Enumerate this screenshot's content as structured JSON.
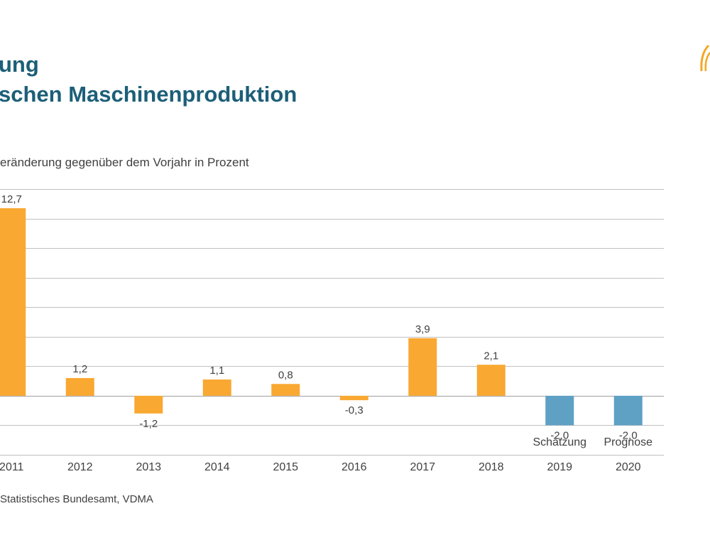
{
  "header": {
    "title_line1": "ung",
    "title_line2": "schen Maschinenproduktion"
  },
  "icons": {
    "logo": "sun-arc-logo-icon"
  },
  "colors": {
    "bar_actual": "#f9a832",
    "bar_forecast": "#5fa0c5",
    "title": "#1c5f78",
    "gridline": "#c0c0c0",
    "text": "#404040"
  },
  "chart_data": {
    "type": "bar",
    "subtitle": "eränderung gegenüber dem Vorjahr in Prozent",
    "categories": [
      "2011",
      "2012",
      "2013",
      "2014",
      "2015",
      "2016",
      "2017",
      "2018",
      "2019",
      "2020"
    ],
    "values": [
      12.7,
      1.2,
      -1.2,
      1.1,
      0.8,
      -0.3,
      3.9,
      2.1,
      -2.0,
      -2.0
    ],
    "value_labels": [
      "12,7",
      "1,2",
      "-1,2",
      "1,1",
      "0,8",
      "-0,3",
      "3,9",
      "2,1",
      "-2,0",
      "-2,0"
    ],
    "bar_kind": [
      "actual",
      "actual",
      "actual",
      "actual",
      "actual",
      "actual",
      "actual",
      "actual",
      "forecast",
      "forecast"
    ],
    "annotations": [
      {
        "category": "2019",
        "text": "Schätzung"
      },
      {
        "category": "2020",
        "text": "Prognose"
      }
    ],
    "ylim": [
      -4,
      14
    ],
    "grid_step": 2,
    "grid": true,
    "legend": "none",
    "source": "Statistisches Bundesamt, VDMA"
  }
}
